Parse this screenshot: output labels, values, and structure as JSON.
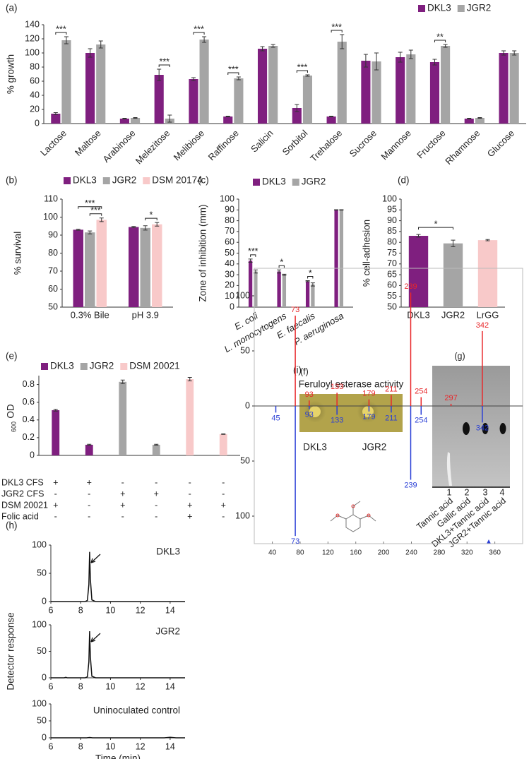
{
  "chart_data": [
    {
      "type": "bar",
      "panel": "(a)",
      "ylabel": "% growth",
      "categories": [
        "Lactose",
        "Maltose",
        "Arabinose",
        "Melezitose",
        "Melibiose",
        "Raffinose",
        "Salicin",
        "Sorbitol",
        "Trehalose",
        "Sucrose",
        "Mannose",
        "Fructose",
        "Rhamnose",
        "Glucose"
      ],
      "series": [
        {
          "name": "DKL3",
          "color": "#7f1f7f",
          "values": [
            14,
            100,
            7,
            69,
            63,
            10,
            106,
            22,
            10,
            89,
            94,
            87,
            7,
            100
          ],
          "errors": [
            1.5,
            6,
            0.5,
            8,
            2,
            0.5,
            3,
            5,
            0.5,
            9,
            7,
            4,
            0.5,
            3
          ],
          "significance": [
            "***",
            null,
            null,
            "***",
            "***",
            "***",
            null,
            "***",
            "***",
            null,
            null,
            "**",
            null,
            null
          ]
        },
        {
          "name": "JGR2",
          "color": "#a5a5a5",
          "values": [
            118,
            112,
            8,
            7,
            119,
            64,
            110,
            68,
            116,
            88,
            98,
            110,
            8,
            100
          ],
          "errors": [
            5,
            5,
            0.5,
            5,
            4,
            2,
            2,
            1,
            10,
            12,
            6,
            2,
            0.5,
            3
          ]
        }
      ],
      "ylim": [
        0,
        140
      ],
      "yticks": [
        0,
        20,
        40,
        60,
        80,
        100,
        120,
        140
      ],
      "legend": "upper right"
    },
    {
      "type": "bar",
      "panel": "(b)",
      "ylabel": "% survival",
      "categories": [
        "0.3% Bile",
        "pH 3.9"
      ],
      "series": [
        {
          "name": "DKL3",
          "color": "#7f1f7f",
          "values": [
            93,
            94.5
          ],
          "errors": [
            0.3,
            0.3
          ],
          "significance": [
            "***",
            null
          ]
        },
        {
          "name": "JGR2",
          "color": "#a5a5a5",
          "values": [
            91.5,
            94
          ],
          "errors": [
            0.8,
            1.2
          ],
          "significance": [
            "***",
            "*"
          ]
        },
        {
          "name": "DSM 20174",
          "color": "#f8c9c9",
          "values": [
            98.5,
            96
          ],
          "errors": [
            1,
            1
          ]
        }
      ],
      "ylim": [
        50,
        110
      ],
      "yticks": [
        50,
        60,
        70,
        80,
        90,
        100,
        110
      ],
      "legend": "top"
    },
    {
      "type": "bar",
      "panel": "(c)",
      "ylabel": "Zone of inhibition (mm)",
      "categories": [
        "E. coli",
        "L. monocytogens",
        "E. faecalis",
        "P. aeruginosa"
      ],
      "series": [
        {
          "name": "DKL3",
          "color": "#7f1f7f",
          "values": [
            43,
            33,
            24,
            90
          ],
          "errors": [
            1.5,
            1.5,
            0.5,
            0.2
          ],
          "significance": [
            "***",
            "*",
            "*",
            null
          ]
        },
        {
          "name": "JGR2",
          "color": "#a5a5a5",
          "values": [
            33,
            30,
            21,
            90
          ],
          "errors": [
            1.5,
            0.5,
            1.5,
            0.2
          ]
        }
      ],
      "ylim": [
        0,
        100
      ],
      "yticks": [
        0,
        10,
        20,
        30,
        40,
        50,
        60,
        70,
        80,
        90,
        100
      ],
      "legend": "top"
    },
    {
      "type": "bar",
      "panel": "(d)",
      "ylabel": "% cell-adhesion",
      "categories": [
        "DKL3",
        "JGR2",
        "LrGG"
      ],
      "values": [
        83,
        79.5,
        81
      ],
      "errors": [
        0.6,
        1.5,
        0.3
      ],
      "colors": [
        "#7f1f7f",
        "#a5a5a5",
        "#f8c9c9"
      ],
      "significance": [
        "*",
        null,
        null
      ],
      "ylim": [
        50,
        100
      ],
      "yticks": [
        50,
        55,
        60,
        65,
        70,
        75,
        80,
        85,
        90,
        95,
        100
      ]
    },
    {
      "type": "bar",
      "panel": "(e)",
      "ylabel": "OD",
      "ylabel_subscript": "600",
      "categories": [
        null,
        null,
        null,
        null,
        null,
        null
      ],
      "series": [
        {
          "name": "DKL3",
          "color": "#7f1f7f",
          "values": [
            0.51,
            0.12,
            null,
            null,
            null,
            null
          ],
          "errors": [
            0.01,
            0.005,
            null,
            null,
            null,
            null
          ]
        },
        {
          "name": "JGR2",
          "color": "#a5a5a5",
          "values": [
            null,
            null,
            0.83,
            0.12,
            null,
            null
          ],
          "errors": [
            null,
            null,
            0.02,
            0.005,
            null,
            null
          ]
        },
        {
          "name": "DSM 20021",
          "color": "#f8c9c9",
          "values": [
            null,
            null,
            null,
            null,
            0.86,
            0.24
          ],
          "errors": [
            null,
            null,
            null,
            null,
            0.02,
            0.003
          ]
        }
      ],
      "ylim": [
        0,
        0.9
      ],
      "yticks": [
        0,
        0.2,
        0.4,
        0.6,
        0.8
      ],
      "legend": "top",
      "table": [
        {
          "label": "DKL3 CFS",
          "marks": [
            "+",
            "+",
            "-",
            "-",
            "-",
            "-"
          ]
        },
        {
          "label": "JGR2 CFS",
          "marks": [
            "-",
            "-",
            "+",
            "+",
            "-",
            "-"
          ]
        },
        {
          "label": "DSM 20021",
          "marks": [
            "+",
            "-",
            "+",
            "-",
            "+",
            "+"
          ]
        },
        {
          "label": "Folic acid",
          "marks": [
            "-",
            "-",
            "-",
            "-",
            "+",
            "-"
          ]
        }
      ]
    },
    {
      "type": "line",
      "panel": "(h)",
      "label": "DKL3",
      "x": [
        6,
        8.3,
        8.45,
        8.55,
        8.6,
        8.65,
        8.75,
        9,
        15
      ],
      "values": [
        0,
        0,
        2,
        30,
        88,
        40,
        3,
        0,
        0
      ],
      "xlim": [
        6,
        15
      ],
      "xticks": [
        6,
        8,
        10,
        12,
        14
      ],
      "ylim": [
        0,
        100
      ],
      "yticks": [
        0,
        50,
        100
      ]
    },
    {
      "type": "line",
      "label": "JGR2",
      "ylabel": "Detector response",
      "x": [
        6,
        6.9,
        7,
        7.1,
        8.3,
        8.45,
        8.55,
        8.6,
        8.65,
        8.75,
        9,
        15
      ],
      "values": [
        0,
        0,
        1,
        0,
        0,
        2,
        30,
        88,
        40,
        3,
        0,
        0
      ],
      "xlim": [
        6,
        15
      ],
      "xticks": [
        6,
        8,
        10,
        12,
        14
      ],
      "ylim": [
        0,
        100
      ],
      "yticks": [
        0,
        50,
        100
      ]
    },
    {
      "type": "line",
      "label": "Uninoculated control",
      "xlabel": "Time (min)",
      "x": [
        6,
        8.4,
        8.6,
        8.8,
        13.6,
        14,
        14.4,
        15
      ],
      "values": [
        0,
        0,
        1,
        0,
        0,
        1.5,
        0,
        0
      ],
      "xlim": [
        6,
        15
      ],
      "xticks": [
        6,
        8,
        10,
        12,
        14
      ],
      "ylim": [
        0,
        100
      ],
      "yticks": [
        0,
        50,
        100
      ]
    },
    {
      "type": "spectrum",
      "panel": "(i)",
      "series": [
        {
          "color": "#e8272a",
          "x": [
            73,
            93,
            133,
            179,
            211,
            239,
            254,
            297,
            342
          ],
          "values": [
            82,
            5,
            12,
            6,
            10,
            103,
            8,
            2,
            68
          ]
        },
        {
          "color": "#2a3fd6",
          "x": [
            45,
            73,
            93,
            133,
            179,
            211,
            239,
            254,
            342
          ],
          "values": [
            -6,
            -118,
            -3,
            -8,
            -5,
            -6,
            -67,
            -8,
            -15
          ]
        }
      ],
      "xlim": [
        14,
        400
      ],
      "xticks": [
        40,
        80,
        120,
        160,
        200,
        240,
        280,
        320,
        360
      ],
      "ylim": [
        -125,
        125
      ],
      "yticks": [
        {
          "value": -100,
          "label": "100"
        },
        {
          "value": -50,
          "label": "50"
        },
        0,
        50,
        100
      ]
    }
  ],
  "panel_f": {
    "panel": "(f)",
    "title": "Feruloyl esterase activity",
    "labels": [
      "DKL3",
      "JGR2"
    ]
  },
  "panel_g": {
    "panel": "(g)",
    "lanes": [
      "1",
      "2",
      "3",
      "4"
    ],
    "labels": [
      "Tannic acid",
      "Gallic acid",
      "DKL3+Tannic acid",
      "JGR2+Tannic acid"
    ]
  }
}
